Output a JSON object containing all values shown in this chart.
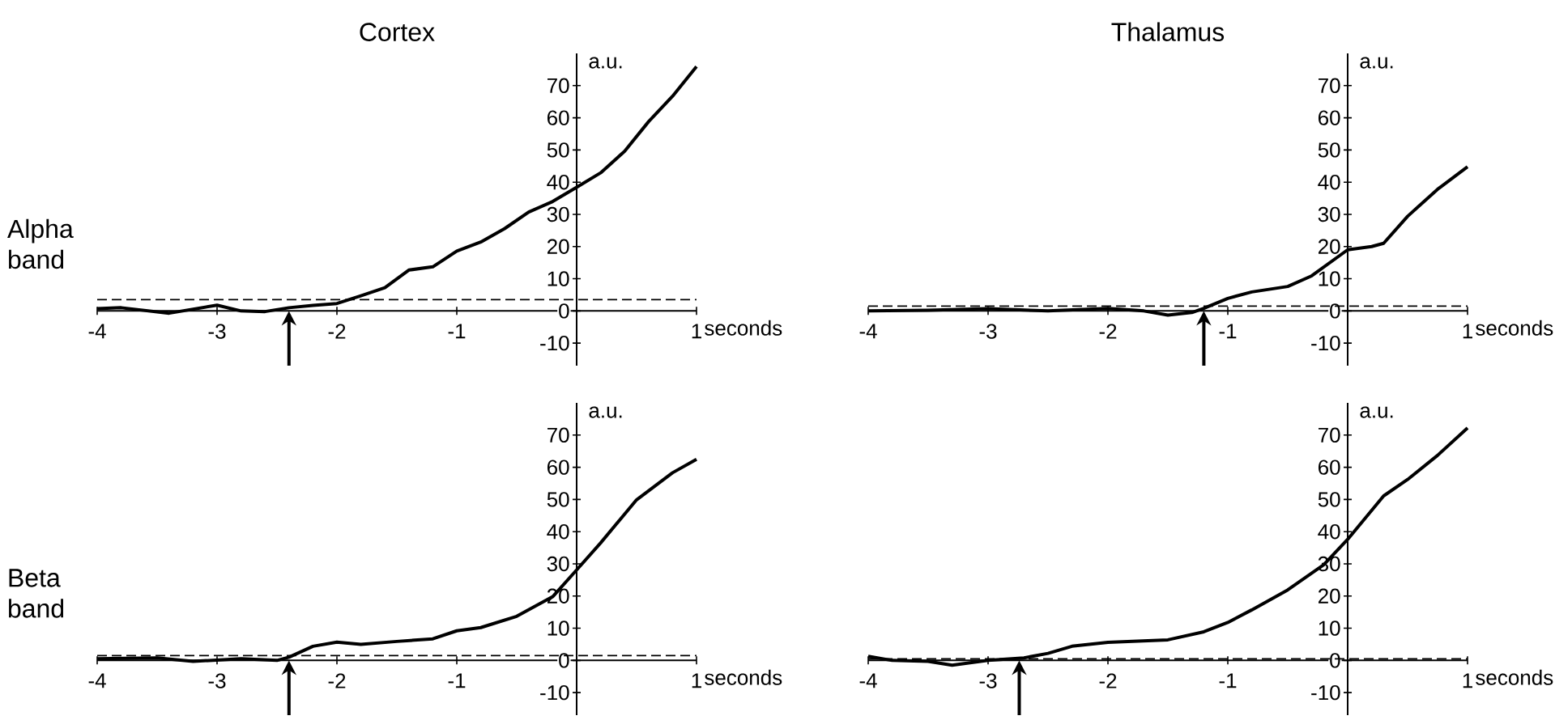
{
  "chart_data": [
    {
      "type": "line",
      "title": "Cortex",
      "xlabel": "seconds",
      "ylabel": "a.u.",
      "annotations": [
        "Alpha band"
      ],
      "xlim": [
        -4,
        1
      ],
      "ylim": [
        -17,
        80
      ],
      "xticks": [
        -4,
        -3,
        -2,
        -1,
        1
      ],
      "yticks": [
        -10,
        0,
        10,
        20,
        30,
        40,
        50,
        60,
        70
      ],
      "series": [
        {
          "color": "#000000",
          "x": [
            -4,
            -3.8,
            -3.4,
            -3.0,
            -2.8,
            -2.6,
            -2.4,
            -2.2,
            -2.0,
            -1.8,
            -1.6,
            -1.4,
            -1.2,
            -1.0,
            -0.8,
            -0.6,
            -0.4,
            -0.2,
            0,
            0.2,
            0.4,
            0.6,
            0.8,
            1.0
          ],
          "values": [
            0.7,
            1,
            -0.7,
            1.8,
            0,
            -0.2,
            1,
            1.7,
            2.3,
            4.7,
            7.2,
            12.7,
            13.7,
            18.6,
            21.4,
            25.6,
            30.7,
            34,
            38.4,
            42.9,
            49.6,
            58.8,
            66.7,
            75.9
          ]
        }
      ],
      "ref_lines": [
        {
          "axis": "y",
          "value": 3.5,
          "line_style": "dashed"
        },
        {
          "axis": "x",
          "value": -2.4
        }
      ]
    },
    {
      "type": "line",
      "title": "Thalamus",
      "xlabel": "seconds",
      "ylabel": "a.u.",
      "xlim": [
        -4,
        1
      ],
      "ylim": [
        -17,
        80
      ],
      "xticks": [
        -4,
        -3,
        -2,
        -1,
        1
      ],
      "yticks": [
        -10,
        0,
        10,
        20,
        30,
        40,
        50,
        60,
        70
      ],
      "series": [
        {
          "color": "#000000",
          "x": [
            -4,
            -3.5,
            -3,
            -2.5,
            -2,
            -1.7,
            -1.5,
            -1.3,
            -1.2,
            -1.0,
            -0.8,
            -0.5,
            -0.3,
            0,
            0.2,
            0.3,
            0.5,
            0.75,
            1.0
          ],
          "values": [
            0,
            0.2,
            0.7,
            0,
            0.8,
            0,
            -1.3,
            -0.5,
            0.8,
            3.9,
            5.9,
            7.6,
            10.9,
            19,
            20,
            21,
            29.4,
            37.8,
            44.8
          ]
        }
      ],
      "ref_lines": [
        {
          "axis": "y",
          "value": 1.5,
          "line_style": "dashed"
        },
        {
          "axis": "x",
          "value": -1.2
        }
      ]
    },
    {
      "type": "line",
      "xlabel": "seconds",
      "ylabel": "a.u.",
      "annotations": [
        "Beta band"
      ],
      "xlim": [
        -4,
        1
      ],
      "ylim": [
        -17,
        80
      ],
      "xticks": [
        -4,
        -3,
        -2,
        -1,
        1
      ],
      "yticks": [
        -10,
        0,
        10,
        20,
        30,
        40,
        50,
        60,
        70
      ],
      "series": [
        {
          "color": "#000000",
          "x": [
            -4,
            -3.5,
            -3.2,
            -2.8,
            -2.5,
            -2.4,
            -2.2,
            -2.0,
            -1.8,
            -1.5,
            -1.2,
            -1.0,
            -0.8,
            -0.5,
            -0.2,
            0,
            0.2,
            0.5,
            0.8,
            1.0
          ],
          "values": [
            0.5,
            0.8,
            -0.3,
            0.5,
            0,
            1,
            4.4,
            5.7,
            5,
            5.9,
            6.7,
            9.2,
            10.2,
            13.7,
            19.8,
            28.1,
            36.5,
            49.9,
            58.3,
            62.5
          ]
        }
      ],
      "ref_lines": [
        {
          "axis": "y",
          "value": 1.5,
          "line_style": "dashed"
        },
        {
          "axis": "x",
          "value": -2.4
        }
      ]
    },
    {
      "type": "line",
      "xlabel": "seconds",
      "ylabel": "a.u.",
      "xlim": [
        -4,
        1
      ],
      "ylim": [
        -17,
        80
      ],
      "xticks": [
        -4,
        -3,
        -2,
        -1,
        1
      ],
      "yticks": [
        -10,
        0,
        10,
        20,
        30,
        40,
        50,
        60,
        70
      ],
      "series": [
        {
          "color": "#000000",
          "x": [
            -4,
            -3.8,
            -3.5,
            -3.3,
            -3.0,
            -2.7,
            -2.5,
            -2.3,
            -2.0,
            -1.5,
            -1.2,
            -1.0,
            -0.8,
            -0.5,
            -0.2,
            0,
            0.3,
            0.5,
            0.75,
            1.0
          ],
          "values": [
            1.3,
            0,
            -0.3,
            -1.5,
            0,
            0.8,
            2.2,
            4.4,
            5.6,
            6.4,
            8.9,
            11.8,
            15.7,
            21.9,
            29.7,
            37.6,
            51.1,
            56.2,
            63.7,
            72.2
          ]
        }
      ],
      "ref_lines": [
        {
          "axis": "y",
          "value": 0.5,
          "line_style": "dashed"
        },
        {
          "axis": "x",
          "value": -2.74
        }
      ]
    }
  ]
}
